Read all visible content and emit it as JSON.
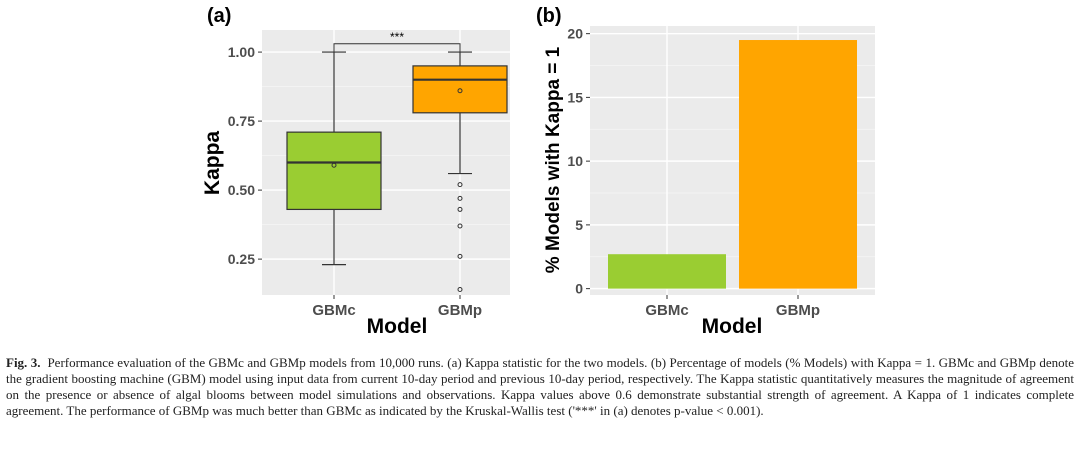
{
  "chart_data": [
    {
      "type": "box",
      "panel_label": "(a)",
      "xlabel": "Model",
      "ylabel": "Kappa",
      "ylim": [
        0.12,
        1.08
      ],
      "yticks": [
        0.25,
        0.5,
        0.75,
        1.0
      ],
      "ytick_labels": [
        "0.25",
        "0.50",
        "0.75",
        "1.00"
      ],
      "categories": [
        "GBMc",
        "GBMp"
      ],
      "colors": [
        "#9acd32",
        "#ffa500"
      ],
      "boxes": [
        {
          "name": "GBMc",
          "whisker_low": 0.23,
          "q1": 0.43,
          "median": 0.6,
          "q3": 0.71,
          "whisker_high": 1.0,
          "mean": 0.59,
          "outliers": []
        },
        {
          "name": "GBMp",
          "whisker_low": 0.56,
          "q1": 0.78,
          "median": 0.9,
          "q3": 0.95,
          "whisker_high": 1.0,
          "mean": 0.86,
          "outliers": [
            0.52,
            0.47,
            0.43,
            0.37,
            0.26,
            0.14
          ]
        }
      ],
      "significance": {
        "label": "***",
        "between": [
          "GBMc",
          "GBMp"
        ],
        "y": 1.03
      }
    },
    {
      "type": "bar",
      "panel_label": "(b)",
      "xlabel": "Model",
      "ylabel": "% Models with Kappa = 1",
      "ylim": [
        -0.5,
        20.6
      ],
      "yticks": [
        0,
        5,
        10,
        15,
        20
      ],
      "ytick_labels": [
        "0",
        "5",
        "10",
        "15",
        "20"
      ],
      "categories": [
        "GBMc",
        "GBMp"
      ],
      "values": [
        2.7,
        19.5
      ],
      "colors": [
        "#9acd32",
        "#ffa500"
      ]
    }
  ],
  "caption": {
    "label": "Fig. 3.",
    "text": "Performance evaluation of the GBMc and GBMp models from 10,000 runs. (a) Kappa statistic for the two models. (b) Percentage of models (% Models) with Kappa = 1. GBMc and GBMp denote the gradient boosting machine (GBM) model using input data from current 10-day period and previous 10-day period, respectively. The Kappa statistic quantitatively measures the magnitude of agreement on the presence or absence of algal blooms between model simulations and observations. Kappa values above 0.6 demonstrate substantial strength of agreement. A Kappa of 1 indicates complete agreement. The performance of GBMp was much better than GBMc as indicated by the Kruskal-Wallis test ('***' in (a) denotes p-value < 0.001)."
  }
}
